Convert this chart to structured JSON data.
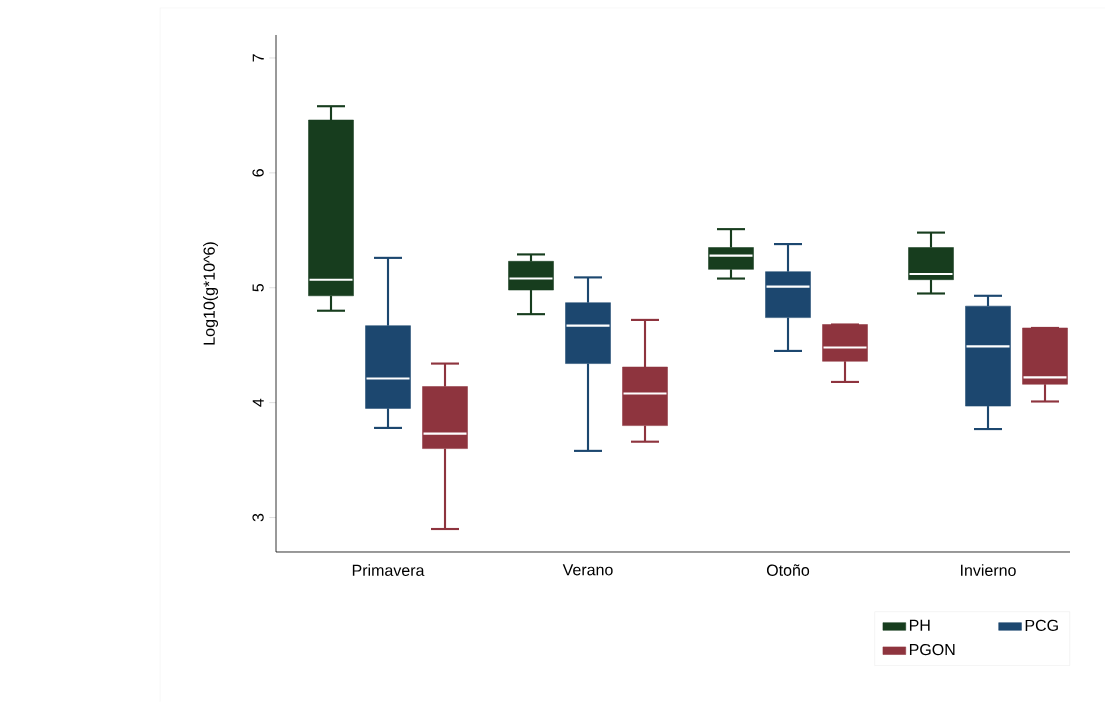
{
  "chart_data": {
    "type": "box",
    "ylabel": "Log10(g*10^6)",
    "categories": [
      "Primavera",
      "Verano",
      "Otoño",
      "Invierno"
    ],
    "ylim": [
      2.7,
      7.2
    ],
    "yticks": [
      3,
      4,
      5,
      6,
      7
    ],
    "legend": "bottom right",
    "series": [
      {
        "name": "PH",
        "color": "#173d1e",
        "boxes": [
          {
            "low": 4.8,
            "q1": 4.93,
            "median": 5.07,
            "q3": 6.46,
            "high": 6.58
          },
          {
            "low": 4.77,
            "q1": 4.98,
            "median": 5.08,
            "q3": 5.23,
            "high": 5.29
          },
          {
            "low": 5.08,
            "q1": 5.16,
            "median": 5.28,
            "q3": 5.35,
            "high": 5.51
          },
          {
            "low": 4.95,
            "q1": 5.07,
            "median": 5.12,
            "q3": 5.35,
            "high": 5.48
          }
        ]
      },
      {
        "name": "PCG",
        "color": "#1c476f",
        "boxes": [
          {
            "low": 3.78,
            "q1": 3.95,
            "median": 4.21,
            "q3": 4.67,
            "high": 5.26
          },
          {
            "low": 3.58,
            "q1": 4.34,
            "median": 4.67,
            "q3": 4.87,
            "high": 5.09
          },
          {
            "low": 4.45,
            "q1": 4.74,
            "median": 5.01,
            "q3": 5.14,
            "high": 5.38
          },
          {
            "low": 3.77,
            "q1": 3.97,
            "median": 4.49,
            "q3": 4.84,
            "high": 4.93
          }
        ]
      },
      {
        "name": "PGON",
        "color": "#8e343e",
        "boxes": [
          {
            "low": 2.9,
            "q1": 3.6,
            "median": 3.73,
            "q3": 4.14,
            "high": 4.34
          },
          {
            "low": 3.66,
            "q1": 3.8,
            "median": 4.08,
            "q3": 4.31,
            "high": 4.72
          },
          {
            "low": 4.18,
            "q1": 4.36,
            "median": 4.48,
            "q3": 4.68,
            "high": 4.68
          },
          {
            "low": 4.01,
            "q1": 4.16,
            "median": 4.22,
            "q3": 4.65,
            "high": 4.65
          }
        ]
      }
    ]
  }
}
